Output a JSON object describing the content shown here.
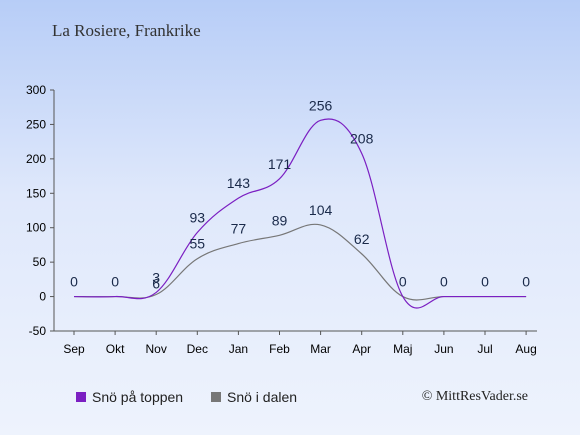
{
  "header": {
    "title": "La Rosiere, Frankrike"
  },
  "legend": {
    "items": [
      {
        "label": "Snö på toppen",
        "color": "#7b1fc2"
      },
      {
        "label": "Snö i dalen",
        "color": "#777777"
      }
    ]
  },
  "credit": "© MittResVader.se",
  "chart_data": {
    "type": "line",
    "categories": [
      "Sep",
      "Okt",
      "Nov",
      "Dec",
      "Jan",
      "Feb",
      "Mar",
      "Apr",
      "Maj",
      "Jun",
      "Jul",
      "Aug"
    ],
    "series": [
      {
        "name": "Snö på toppen",
        "color": "#7b1fc2",
        "values": [
          0,
          0,
          6,
          93,
          143,
          171,
          256,
          208,
          0,
          0,
          0,
          0
        ],
        "labels": [
          "0",
          "0",
          "6",
          "93",
          "143",
          "171",
          "256",
          "208",
          "0",
          "0",
          "0",
          "0"
        ]
      },
      {
        "name": "Snö i dalen",
        "color": "#777777",
        "values": [
          0,
          0,
          3,
          55,
          77,
          89,
          104,
          62,
          0,
          0,
          0,
          0
        ],
        "labels": [
          "",
          "",
          "3",
          "55",
          "77",
          "89",
          "104",
          "62",
          "",
          "",
          "",
          ""
        ]
      }
    ],
    "yticks": [
      -50,
      0,
      50,
      100,
      150,
      200,
      250,
      300
    ],
    "ylim": [
      -50,
      300
    ],
    "grid": false,
    "legend_position": "bottom-left"
  }
}
